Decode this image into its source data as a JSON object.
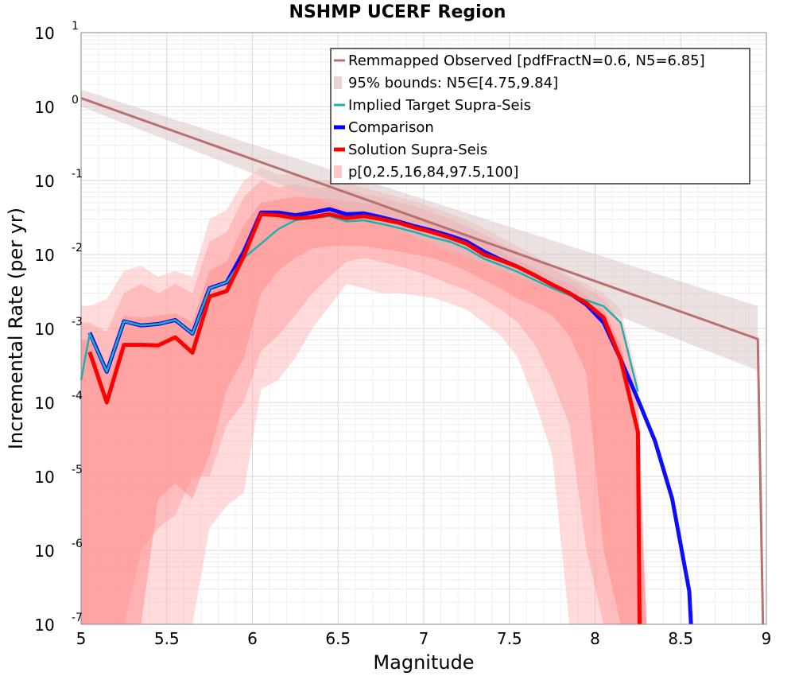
{
  "chart_data": {
    "type": "line",
    "title": "NSHMP UCERF Region",
    "xlabel": "Magnitude",
    "ylabel": "Incremental Rate (per yr)",
    "xlim": [
      5,
      9
    ],
    "ylim": [
      1e-07,
      10
    ],
    "yscale": "log",
    "grid": true,
    "legend_position": "top-right",
    "x_ticks": [
      "5",
      "5.5",
      "6",
      "6.5",
      "7",
      "7.5",
      "8",
      "8.5",
      "9"
    ],
    "y_ticks": [
      {
        "base": "10",
        "exp": "1"
      },
      {
        "base": "10",
        "exp": "0"
      },
      {
        "base": "10",
        "exp": "-1"
      },
      {
        "base": "10",
        "exp": "-2"
      },
      {
        "base": "10",
        "exp": "-3"
      },
      {
        "base": "10",
        "exp": "-4"
      },
      {
        "base": "10",
        "exp": "-5"
      },
      {
        "base": "10",
        "exp": "-6"
      },
      {
        "base": "10",
        "exp": "-7"
      }
    ],
    "legend": [
      {
        "label": "Remmapped Observed [pdfFractN=0.6, N5=6.85]",
        "color": "#b87070",
        "style": "line"
      },
      {
        "label": "95% bounds: N5∈[4.75,9.84]",
        "color": "#e8d4d4",
        "style": "band"
      },
      {
        "label": "Implied Target Supra-Seis",
        "color": "#20b0b0",
        "style": "line"
      },
      {
        "label": "Comparison",
        "color": "#0000ff",
        "style": "thick"
      },
      {
        "label": "Solution Supra-Seis",
        "color": "#ff0000",
        "style": "thick"
      },
      {
        "label": "p[0,2.5,16,84,97.5,100]",
        "color": "#ffc8c8",
        "style": "band"
      }
    ],
    "series": [
      {
        "name": "Remmapped Observed [pdfFractN=0.6, N5=6.85]",
        "color": "#b87070",
        "x": [
          5,
          8.95,
          8.98
        ],
        "y": [
          1.3,
          0.00072,
          1e-07
        ]
      },
      {
        "name": "Comparison",
        "color": "#0000ff",
        "x": [
          5.05,
          5.15,
          5.25,
          5.35,
          5.45,
          5.55,
          5.65,
          5.75,
          5.85,
          5.95,
          6.05,
          6.15,
          6.25,
          6.35,
          6.45,
          6.55,
          6.65,
          6.75,
          6.85,
          6.95,
          7.05,
          7.15,
          7.25,
          7.35,
          7.45,
          7.55,
          7.65,
          7.75,
          7.85,
          7.95,
          8.05,
          8.15,
          8.25,
          8.35,
          8.45,
          8.55,
          8.56
        ],
        "y": [
          0.00088,
          0.00026,
          0.00125,
          0.0011,
          0.00115,
          0.0013,
          0.00085,
          0.0035,
          0.0042,
          0.011,
          0.037,
          0.037,
          0.034,
          0.037,
          0.041,
          0.035,
          0.036,
          0.032,
          0.028,
          0.024,
          0.021,
          0.018,
          0.015,
          0.011,
          0.0085,
          0.0068,
          0.0052,
          0.0039,
          0.003,
          0.0021,
          0.0012,
          0.00038,
          0.00011,
          3e-05,
          5e-06,
          2.8e-07,
          1e-07
        ]
      },
      {
        "name": "Implied Target Supra-Seis",
        "color": "#20b0b0",
        "x": [
          5,
          5.05,
          5.15,
          5.25,
          5.35,
          5.45,
          5.55,
          5.65,
          5.75,
          5.85,
          5.95,
          6.05,
          6.15,
          6.25,
          6.35,
          6.45,
          6.55,
          6.65,
          6.75,
          6.85,
          6.95,
          7.05,
          7.15,
          7.25,
          7.35,
          7.45,
          7.55,
          7.65,
          7.75,
          7.85,
          7.95,
          8.05,
          8.15,
          8.25
        ],
        "y": [
          0.0002,
          0.00085,
          0.00026,
          0.00125,
          0.0011,
          0.00115,
          0.0013,
          0.00085,
          0.0035,
          0.0042,
          0.009,
          0.014,
          0.022,
          0.029,
          0.031,
          0.033,
          0.028,
          0.029,
          0.026,
          0.023,
          0.02,
          0.017,
          0.015,
          0.012,
          0.0088,
          0.0072,
          0.0058,
          0.0045,
          0.0035,
          0.0028,
          0.0024,
          0.002,
          0.0012,
          0.00014
        ]
      },
      {
        "name": "Solution Supra-Seis",
        "color": "#ff0000",
        "x": [
          5.05,
          5.15,
          5.25,
          5.35,
          5.45,
          5.55,
          5.65,
          5.75,
          5.85,
          5.95,
          6.05,
          6.15,
          6.25,
          6.35,
          6.45,
          6.55,
          6.65,
          6.75,
          6.85,
          6.95,
          7.05,
          7.15,
          7.25,
          7.35,
          7.45,
          7.55,
          7.65,
          7.75,
          7.85,
          7.95,
          8.05,
          8.15,
          8.25,
          8.26
        ],
        "y": [
          0.00048,
          0.0001,
          0.0006,
          0.0006,
          0.00059,
          0.00076,
          0.00047,
          0.0027,
          0.0032,
          0.0095,
          0.035,
          0.034,
          0.031,
          0.032,
          0.035,
          0.031,
          0.033,
          0.03,
          0.027,
          0.023,
          0.02,
          0.017,
          0.014,
          0.01,
          0.0083,
          0.0068,
          0.0052,
          0.0039,
          0.003,
          0.0022,
          0.0014,
          0.00038,
          4e-05,
          1e-07
        ]
      }
    ],
    "observed_bounds": {
      "x": [
        5,
        8.95
      ],
      "lower": [
        1.0,
        0.00027
      ],
      "upper": [
        1.7,
        0.002
      ]
    },
    "percentile_bands": {
      "x": [
        5.0,
        5.05,
        5.15,
        5.25,
        5.35,
        5.45,
        5.55,
        5.65,
        5.75,
        5.85,
        5.95,
        6.05,
        6.15,
        6.25,
        6.35,
        6.45,
        6.55,
        6.65,
        6.75,
        6.85,
        6.95,
        7.05,
        7.15,
        7.25,
        7.35,
        7.45,
        7.55,
        7.65,
        7.75,
        7.85,
        7.95,
        8.05,
        8.15,
        8.25,
        8.3
      ],
      "p0": [
        1e-07,
        1e-07,
        1e-07,
        1e-07,
        1e-07,
        1e-07,
        1e-07,
        1e-07,
        2e-06,
        4e-06,
        6e-06,
        0.00015,
        0.0002,
        0.0004,
        0.001,
        0.002,
        0.004,
        0.0035,
        0.003,
        0.003,
        0.0028,
        0.0026,
        0.0022,
        0.0018,
        0.0012,
        0.0008,
        0.0004,
        0.0001,
        2e-05,
        1e-07,
        1e-07,
        1e-07,
        1e-07,
        1e-07,
        1e-07
      ],
      "p2_5": [
        1e-07,
        1e-07,
        1e-07,
        1e-07,
        1e-06,
        2e-06,
        3e-06,
        1e-05,
        1e-05,
        5e-05,
        0.0001,
        0.0005,
        0.0008,
        0.0015,
        0.003,
        0.005,
        0.008,
        0.009,
        0.008,
        0.007,
        0.006,
        0.005,
        0.004,
        0.0033,
        0.0025,
        0.0018,
        0.0012,
        0.0006,
        0.0002,
        5e-05,
        1e-06,
        1e-07,
        1e-07,
        1e-07,
        1e-07
      ],
      "p16": [
        1e-07,
        1e-07,
        1e-07,
        1e-07,
        1e-07,
        5e-06,
        8e-06,
        5e-06,
        2e-05,
        0.00015,
        0.0004,
        0.003,
        0.006,
        0.009,
        0.012,
        0.013,
        0.013,
        0.013,
        0.012,
        0.011,
        0.01,
        0.009,
        0.0075,
        0.006,
        0.0045,
        0.0035,
        0.0025,
        0.002,
        0.0015,
        0.0008,
        0.00025,
        1e-06,
        1e-07,
        1e-07,
        1e-07
      ],
      "p84": [
        0.0007,
        0.0007,
        0.0003,
        0.0015,
        0.0014,
        0.0015,
        0.0016,
        0.0012,
        0.006,
        0.008,
        0.025,
        0.05,
        0.055,
        0.06,
        0.058,
        0.057,
        0.052,
        0.05,
        0.045,
        0.038,
        0.032,
        0.027,
        0.023,
        0.019,
        0.015,
        0.011,
        0.0085,
        0.0065,
        0.005,
        0.004,
        0.0028,
        0.0018,
        0.0006,
        5e-05,
        1e-07
      ],
      "p97_5": [
        0.0012,
        0.0012,
        0.0009,
        0.003,
        0.004,
        0.003,
        0.004,
        0.003,
        0.015,
        0.02,
        0.06,
        0.1,
        0.08,
        0.09,
        0.08,
        0.08,
        0.075,
        0.065,
        0.06,
        0.05,
        0.045,
        0.037,
        0.03,
        0.024,
        0.019,
        0.014,
        0.011,
        0.0085,
        0.0065,
        0.0048,
        0.0035,
        0.0025,
        0.0012,
        0.0001,
        1e-07
      ],
      "p100": [
        0.002,
        0.002,
        0.0025,
        0.006,
        0.007,
        0.005,
        0.006,
        0.005,
        0.03,
        0.04,
        0.1,
        0.15,
        0.12,
        0.12,
        0.1,
        0.1,
        0.095,
        0.08,
        0.07,
        0.06,
        0.052,
        0.044,
        0.036,
        0.029,
        0.023,
        0.017,
        0.013,
        0.0095,
        0.0072,
        0.0052,
        0.004,
        0.003,
        0.0018,
        0.0002,
        1e-07
      ]
    }
  }
}
